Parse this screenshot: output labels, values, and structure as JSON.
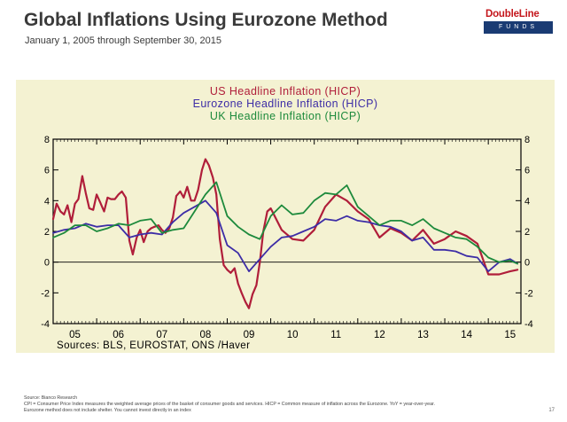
{
  "header": {
    "title": "Global Inflations Using Eurozone Method",
    "subtitle": "January 1, 2005 through September 30, 2015"
  },
  "logo": {
    "name": "DoubleLine",
    "tagline": "FUNDS"
  },
  "footer": {
    "source_line": "Source: Bianco Research",
    "definition_line": "CPI = Consumer Price Index measures the weighted average prices of the basket of consumer goods and services. HICP = Common measure of inflation across the Eurozone. YoY = year-over-year.",
    "disclaimer_line": "Eurozone method does not include shelter. You cannot invest directly in an index",
    "page_number": "17"
  },
  "chart_data": {
    "type": "line",
    "plot_background": "#f4f2d2",
    "series": [
      {
        "name": "US Headline Inflation (HICP)",
        "color": "#b01e3a",
        "x": [
          2005.0,
          2005.08,
          2005.17,
          2005.25,
          2005.33,
          2005.42,
          2005.5,
          2005.58,
          2005.67,
          2005.75,
          2005.83,
          2005.92,
          2006.0,
          2006.08,
          2006.17,
          2006.25,
          2006.33,
          2006.42,
          2006.5,
          2006.58,
          2006.67,
          2006.75,
          2006.83,
          2006.92,
          2007.0,
          2007.08,
          2007.17,
          2007.25,
          2007.33,
          2007.42,
          2007.5,
          2007.58,
          2007.67,
          2007.75,
          2007.83,
          2007.92,
          2008.0,
          2008.08,
          2008.17,
          2008.25,
          2008.33,
          2008.42,
          2008.5,
          2008.58,
          2008.67,
          2008.75,
          2008.83,
          2008.92,
          2009.0,
          2009.08,
          2009.17,
          2009.25,
          2009.33,
          2009.42,
          2009.5,
          2009.58,
          2009.67,
          2009.75,
          2009.83,
          2009.92,
          2010.0,
          2010.25,
          2010.5,
          2010.75,
          2011.0,
          2011.25,
          2011.5,
          2011.75,
          2012.0,
          2012.25,
          2012.5,
          2012.75,
          2013.0,
          2013.25,
          2013.5,
          2013.75,
          2014.0,
          2014.25,
          2014.5,
          2014.75,
          2015.0,
          2015.25,
          2015.5,
          2015.67
        ],
        "values": [
          2.8,
          3.8,
          3.3,
          3.1,
          3.7,
          2.6,
          3.8,
          4.1,
          5.6,
          4.5,
          3.5,
          3.4,
          4.4,
          3.9,
          3.3,
          4.2,
          4.1,
          4.1,
          4.4,
          4.6,
          4.2,
          1.4,
          0.5,
          1.6,
          2.1,
          1.3,
          2.0,
          2.2,
          2.3,
          2.4,
          2.1,
          1.9,
          2.2,
          2.9,
          4.3,
          4.6,
          4.2,
          4.9,
          4.0,
          4.0,
          4.7,
          6.0,
          6.7,
          6.3,
          5.5,
          4.4,
          1.5,
          -0.2,
          -0.5,
          -0.7,
          -0.4,
          -1.4,
          -2.0,
          -2.6,
          -3.0,
          -2.1,
          -1.5,
          0.0,
          2.0,
          3.3,
          3.5,
          2.1,
          1.5,
          1.4,
          2.1,
          3.6,
          4.4,
          4.0,
          3.3,
          2.8,
          1.6,
          2.2,
          1.9,
          1.4,
          2.1,
          1.2,
          1.5,
          2.0,
          1.7,
          1.2,
          -0.8,
          -0.8,
          -0.6,
          -0.5
        ]
      },
      {
        "name": "Eurozone Headline Inflation (HICP)",
        "color": "#3d2da6",
        "x": [
          2005.0,
          2005.25,
          2005.5,
          2005.75,
          2006.0,
          2006.25,
          2006.5,
          2006.75,
          2007.0,
          2007.25,
          2007.5,
          2007.75,
          2008.0,
          2008.25,
          2008.5,
          2008.75,
          2009.0,
          2009.25,
          2009.5,
          2009.75,
          2010.0,
          2010.25,
          2010.5,
          2010.75,
          2011.0,
          2011.25,
          2011.5,
          2011.75,
          2012.0,
          2012.25,
          2012.5,
          2012.75,
          2013.0,
          2013.25,
          2013.5,
          2013.75,
          2014.0,
          2014.25,
          2014.5,
          2014.75,
          2015.0,
          2015.25,
          2015.5,
          2015.67
        ],
        "values": [
          1.9,
          2.1,
          2.2,
          2.5,
          2.3,
          2.4,
          2.4,
          1.6,
          1.8,
          1.9,
          1.8,
          2.6,
          3.2,
          3.6,
          4.0,
          3.2,
          1.1,
          0.6,
          -0.6,
          0.2,
          1.0,
          1.6,
          1.7,
          2.0,
          2.3,
          2.8,
          2.7,
          3.0,
          2.7,
          2.6,
          2.4,
          2.3,
          2.0,
          1.4,
          1.6,
          0.8,
          0.8,
          0.7,
          0.4,
          0.3,
          -0.6,
          0.0,
          0.2,
          -0.1
        ]
      },
      {
        "name": "UK Headline Inflation (HICP)",
        "color": "#1d8a3c",
        "x": [
          2005.0,
          2005.25,
          2005.5,
          2005.75,
          2006.0,
          2006.25,
          2006.5,
          2006.75,
          2007.0,
          2007.25,
          2007.5,
          2007.75,
          2008.0,
          2008.25,
          2008.5,
          2008.75,
          2009.0,
          2009.25,
          2009.5,
          2009.75,
          2010.0,
          2010.25,
          2010.5,
          2010.75,
          2011.0,
          2011.25,
          2011.5,
          2011.75,
          2012.0,
          2012.25,
          2012.5,
          2012.75,
          2013.0,
          2013.25,
          2013.5,
          2013.75,
          2014.0,
          2014.25,
          2014.5,
          2014.75,
          2015.0,
          2015.25,
          2015.5,
          2015.67
        ],
        "values": [
          1.6,
          1.9,
          2.4,
          2.4,
          2.0,
          2.2,
          2.5,
          2.4,
          2.7,
          2.8,
          1.9,
          2.1,
          2.2,
          3.3,
          4.4,
          5.2,
          3.0,
          2.3,
          1.8,
          1.5,
          3.0,
          3.7,
          3.1,
          3.2,
          4.0,
          4.5,
          4.4,
          5.0,
          3.6,
          3.0,
          2.4,
          2.7,
          2.7,
          2.4,
          2.8,
          2.2,
          1.9,
          1.6,
          1.5,
          1.0,
          0.3,
          0.0,
          0.1,
          -0.1
        ]
      }
    ],
    "x_ticks": [
      "05",
      "06",
      "07",
      "08",
      "09",
      "10",
      "11",
      "12",
      "13",
      "14",
      "15"
    ],
    "xlim": [
      2005.0,
      2015.75
    ],
    "ylim": [
      -4,
      8
    ],
    "y_ticks": [
      -4,
      -2,
      0,
      2,
      4,
      6,
      8
    ],
    "y_tick_labels": [
      "-4",
      "-2",
      "0",
      "2",
      "4",
      "6",
      "8"
    ],
    "zero_line": true,
    "source_note": "Sources: BLS, EUROSTAT, ONS /Haver"
  }
}
